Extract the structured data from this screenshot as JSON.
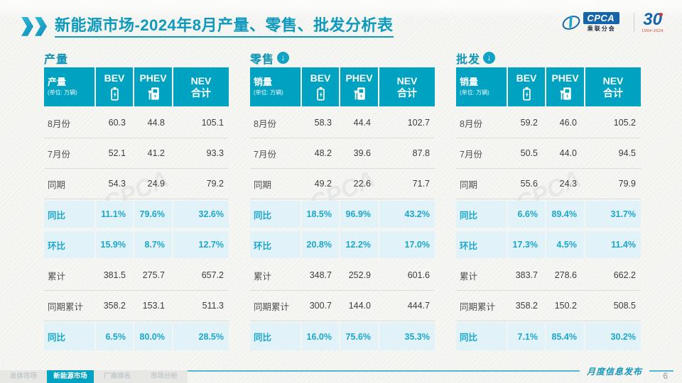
{
  "slide": {
    "title": {
      "strong": "新能源市场",
      "rest": "-2024年8月产量、零售、批发分析表"
    },
    "logos": {
      "cpca_acronym": "CPCA",
      "cpca_name": "乘联分会",
      "anniversary_number": "30",
      "anniversary_years": "1994-2024"
    },
    "watermark": "CPCA"
  },
  "tables": [
    {
      "section_title": "产量",
      "trend_icon": "",
      "header": {
        "label": "产量",
        "unit": "(单位: 万辆)",
        "columns": [
          "BEV",
          "PHEV"
        ],
        "total_line1": "NEV",
        "total_line2": "合计"
      },
      "rows": [
        {
          "label": "8月份",
          "values": [
            "60.3",
            "44.8",
            "105.1"
          ],
          "highlight": false
        },
        {
          "label": "7月份",
          "values": [
            "52.1",
            "41.2",
            "93.3"
          ],
          "highlight": false
        },
        {
          "label": "同期",
          "values": [
            "54.3",
            "24.9",
            "79.2"
          ],
          "highlight": false
        },
        {
          "label": "同比",
          "values": [
            "11.1%",
            "79.6%",
            "32.6%"
          ],
          "highlight": true
        },
        {
          "label": "环比",
          "values": [
            "15.9%",
            "8.7%",
            "12.7%"
          ],
          "highlight": true
        },
        {
          "label": "累计",
          "values": [
            "381.5",
            "275.7",
            "657.2"
          ],
          "highlight": false
        },
        {
          "label": "同期累计",
          "values": [
            "358.2",
            "153.1",
            "511.3"
          ],
          "highlight": false
        },
        {
          "label": "同比",
          "values": [
            "6.5%",
            "80.0%",
            "28.5%"
          ],
          "highlight": true
        }
      ]
    },
    {
      "section_title": "零售",
      "trend_icon": "down",
      "header": {
        "label": "销量",
        "unit": "(单位: 万辆)",
        "columns": [
          "BEV",
          "PHEV"
        ],
        "total_line1": "NEV",
        "total_line2": "合计"
      },
      "rows": [
        {
          "label": "8月份",
          "values": [
            "58.3",
            "44.4",
            "102.7"
          ],
          "highlight": false
        },
        {
          "label": "7月份",
          "values": [
            "48.2",
            "39.6",
            "87.8"
          ],
          "highlight": false
        },
        {
          "label": "同期",
          "values": [
            "49.2",
            "22.6",
            "71.7"
          ],
          "highlight": false
        },
        {
          "label": "同比",
          "values": [
            "18.5%",
            "96.9%",
            "43.2%"
          ],
          "highlight": true
        },
        {
          "label": "环比",
          "values": [
            "20.8%",
            "12.2%",
            "17.0%"
          ],
          "highlight": true
        },
        {
          "label": "累计",
          "values": [
            "348.7",
            "252.9",
            "601.6"
          ],
          "highlight": false
        },
        {
          "label": "同期累计",
          "values": [
            "300.7",
            "144.0",
            "444.7"
          ],
          "highlight": false
        },
        {
          "label": "同比",
          "values": [
            "16.0%",
            "75.6%",
            "35.3%"
          ],
          "highlight": true
        }
      ]
    },
    {
      "section_title": "批发",
      "trend_icon": "down",
      "header": {
        "label": "销量",
        "unit": "(单位: 万辆)",
        "columns": [
          "BEV",
          "PHEV"
        ],
        "total_line1": "NEV",
        "total_line2": "合计"
      },
      "rows": [
        {
          "label": "8月份",
          "values": [
            "59.2",
            "46.0",
            "105.2"
          ],
          "highlight": false
        },
        {
          "label": "7月份",
          "values": [
            "50.5",
            "44.0",
            "94.5"
          ],
          "highlight": false
        },
        {
          "label": "同期",
          "values": [
            "55.6",
            "24.3",
            "79.9"
          ],
          "highlight": false
        },
        {
          "label": "同比",
          "values": [
            "6.6%",
            "89.4%",
            "31.7%"
          ],
          "highlight": true
        },
        {
          "label": "环比",
          "values": [
            "17.3%",
            "4.5%",
            "11.4%"
          ],
          "highlight": true
        },
        {
          "label": "累计",
          "values": [
            "383.7",
            "278.6",
            "662.2"
          ],
          "highlight": false
        },
        {
          "label": "同期累计",
          "values": [
            "358.2",
            "150.2",
            "508.5"
          ],
          "highlight": false
        },
        {
          "label": "同比",
          "values": [
            "7.1%",
            "85.4%",
            "30.2%"
          ],
          "highlight": true
        }
      ]
    }
  ],
  "footer": {
    "tabs": [
      {
        "label": "总体市场",
        "active": false
      },
      {
        "label": "新能源市场",
        "active": true
      },
      {
        "label": "厂商排名",
        "active": false
      },
      {
        "label": "市场分析",
        "active": false
      }
    ],
    "publication": "月度信息发布",
    "page_number": "6"
  },
  "colors": {
    "accent_teal": "#00a2c1",
    "title_teal": "#0d9abc",
    "highlight_bg": "#e1f2f8",
    "highlight_text": "#1ba7cc"
  }
}
